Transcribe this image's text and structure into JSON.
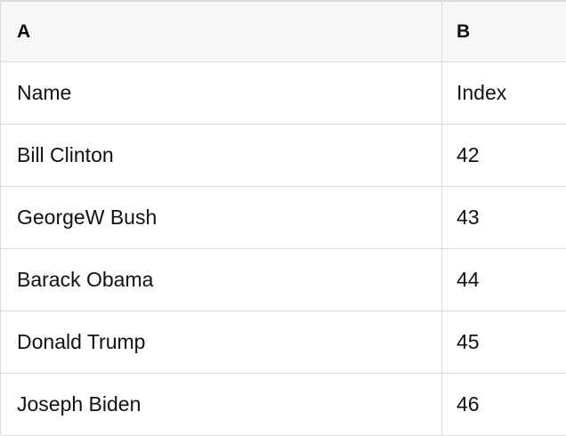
{
  "app": {
    "type": "spreadsheet-table"
  },
  "colors": {
    "header_bg": "#f7f7f7",
    "row_bg": "#ffffff",
    "border": "#dcdcdc",
    "text": "#111111"
  },
  "table": {
    "header": {
      "a": "A",
      "b": "B"
    },
    "rows": [
      {
        "a": "Name",
        "b": "Index"
      },
      {
        "a": "Bill Clinton",
        "b": "42"
      },
      {
        "a": "GeorgeW Bush",
        "b": "43"
      },
      {
        "a": "Barack Obama",
        "b": "44"
      },
      {
        "a": "Donald Trump",
        "b": "45"
      },
      {
        "a": "Joseph Biden",
        "b": "46"
      }
    ]
  }
}
